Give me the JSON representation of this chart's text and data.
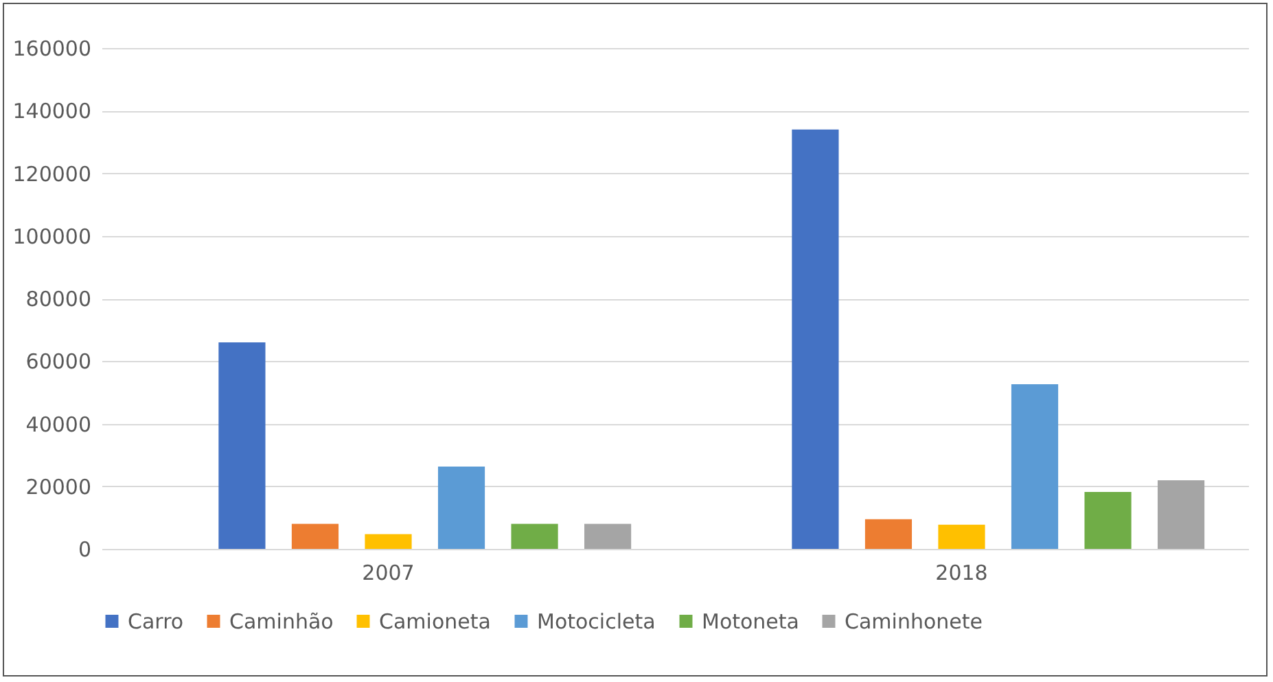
{
  "chart_data": {
    "type": "bar",
    "categories": [
      "2007",
      "2018"
    ],
    "series": [
      {
        "name": "Carro",
        "color": "#4472c4",
        "values": [
          66000,
          134000
        ]
      },
      {
        "name": "Caminhão",
        "color": "#ed7d31",
        "values": [
          8000,
          9500
        ]
      },
      {
        "name": "Camioneta",
        "color": "#ffc000",
        "values": [
          4700,
          7700
        ]
      },
      {
        "name": "Motocicleta",
        "color": "#5b9bd5",
        "values": [
          26300,
          52600
        ]
      },
      {
        "name": "Motoneta",
        "color": "#70ad47",
        "values": [
          8000,
          18200
        ]
      },
      {
        "name": "Caminhonete",
        "color": "#a5a5a5",
        "values": [
          8000,
          21900
        ]
      }
    ],
    "ylim": [
      0,
      160000
    ],
    "yticks": [
      0,
      20000,
      40000,
      60000,
      80000,
      100000,
      120000,
      140000,
      160000
    ],
    "grid": "y",
    "legend": "bottom"
  }
}
